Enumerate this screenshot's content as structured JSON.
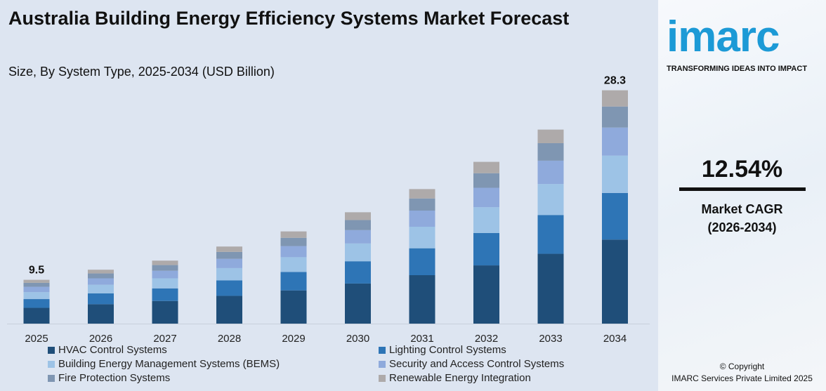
{
  "title": "Australia Building Energy Efficiency Systems Market Forecast",
  "subtitle": "Size, By System Type, 2025-2034 (USD Billion)",
  "brand": {
    "logo": "imarc",
    "tagline": "TRANSFORMING IDEAS INTO IMPACT",
    "color": "#1c9ad6"
  },
  "cagr": {
    "value": "12.54%",
    "label": "Market CAGR",
    "period": "(2026-2034)"
  },
  "copyright": {
    "line1": "© Copyright",
    "line2": "IMARC Services Private Limited 2025"
  },
  "chart_data": {
    "type": "bar",
    "stacked": true,
    "title": "Australia Building Energy Efficiency Systems Market Forecast",
    "subtitle": "Size, By System Type, 2025-2034 (USD Billion)",
    "categories": [
      "2025",
      "2026",
      "2027",
      "2028",
      "2029",
      "2030",
      "2031",
      "2032",
      "2033",
      "2034"
    ],
    "total_labels": {
      "2025": "9.5",
      "2034": "28.3"
    },
    "legend_position": "bottom",
    "grid": false,
    "series": [
      {
        "name": "HVAC Control Systems",
        "color": "#1f4e79",
        "values": [
          3.42,
          3.78,
          4.1,
          4.61,
          5.15,
          5.83,
          6.66,
          7.63,
          8.78,
          10.19
        ]
      },
      {
        "name": "Lighting Control Systems",
        "color": "#2e75b6",
        "values": [
          1.9,
          2.1,
          2.28,
          2.56,
          2.86,
          3.24,
          3.7,
          4.24,
          4.88,
          5.66
        ]
      },
      {
        "name": "Building Energy Management Systems (BEMS)",
        "color": "#9dc3e6",
        "values": [
          1.52,
          1.68,
          1.82,
          2.05,
          2.29,
          2.59,
          2.96,
          3.39,
          3.9,
          4.53
        ]
      },
      {
        "name": "Security and Access Control Systems",
        "color": "#8faadc",
        "values": [
          1.14,
          1.26,
          1.37,
          1.54,
          1.72,
          1.94,
          2.22,
          2.54,
          2.93,
          3.4
        ]
      },
      {
        "name": "Fire Protection Systems",
        "color": "#7f96b2",
        "values": [
          0.86,
          0.95,
          1.03,
          1.15,
          1.29,
          1.46,
          1.67,
          1.91,
          2.2,
          2.55
        ]
      },
      {
        "name": "Renewable Energy Integration",
        "color": "#aeaaaa",
        "values": [
          0.66,
          0.73,
          0.8,
          0.89,
          0.99,
          1.14,
          1.29,
          1.49,
          1.71,
          1.97
        ]
      }
    ]
  }
}
